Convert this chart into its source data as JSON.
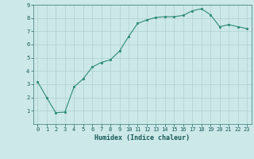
{
  "x": [
    0,
    1,
    2,
    3,
    4,
    5,
    6,
    7,
    8,
    9,
    10,
    11,
    12,
    13,
    14,
    15,
    16,
    17,
    18,
    19,
    20,
    21,
    22,
    23
  ],
  "y": [
    3.2,
    2.0,
    0.85,
    0.9,
    2.8,
    3.4,
    4.3,
    4.65,
    4.85,
    5.5,
    6.6,
    7.6,
    7.85,
    8.05,
    8.1,
    8.1,
    8.2,
    8.55,
    8.7,
    8.25,
    7.35,
    7.5,
    7.35,
    7.2
  ],
  "xlabel": "Humidex (Indice chaleur)",
  "ylim": [
    0,
    9
  ],
  "xlim": [
    -0.5,
    23.5
  ],
  "yticks": [
    1,
    2,
    3,
    4,
    5,
    6,
    7,
    8,
    9
  ],
  "xticks": [
    0,
    1,
    2,
    3,
    4,
    5,
    6,
    7,
    8,
    9,
    10,
    11,
    12,
    13,
    14,
    15,
    16,
    17,
    18,
    19,
    20,
    21,
    22,
    23
  ],
  "line_color": "#2e8b73",
  "marker_color": "#2e8b73",
  "bg_color": "#cce8e8",
  "grid_color": "#b0d0d0"
}
